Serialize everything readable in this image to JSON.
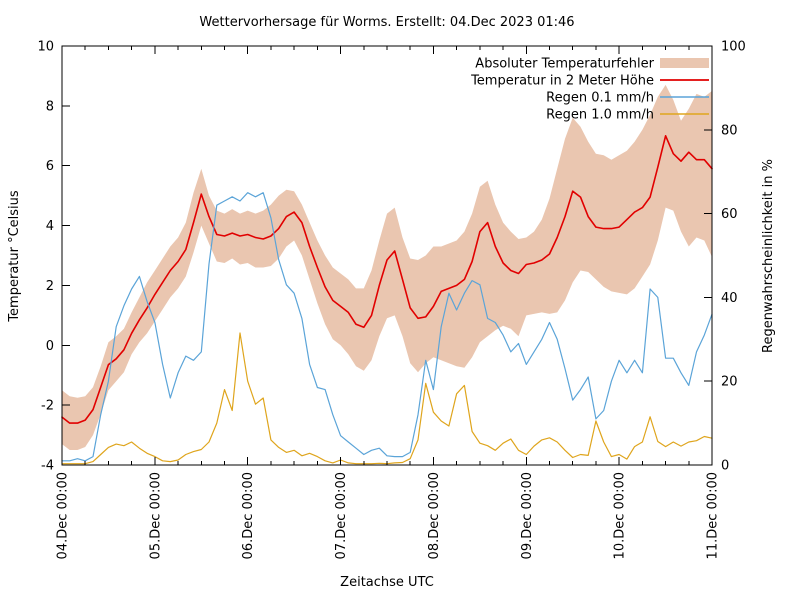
{
  "title": "Wettervorhersage für Worms. Erstellt: 04.Dec 2023 01:46",
  "chart_data": {
    "type": "line",
    "title": "Wettervorhersage für Worms. Erstellt: 04.Dec 2023 01:46",
    "background_color": "#ffffff",
    "grid": false,
    "legend_position": "top-right-inside",
    "x_axis": {
      "label": "Zeitachse UTC",
      "tick_labels": [
        "04.Dec 00:00",
        "05.Dec 00:00",
        "06.Dec 00:00",
        "07.Dec 00:00",
        "08.Dec 00:00",
        "09.Dec 00:00",
        "10.Dec 00:00",
        "11.Dec 00:00"
      ],
      "minor_ticks_per_day": 4,
      "hours_step": 2,
      "hours_total": 168
    },
    "left_axis": {
      "label": "Temperatur °Celsius",
      "min": -4,
      "max": 10,
      "ticks": [
        -4,
        -2,
        0,
        2,
        4,
        6,
        8,
        10
      ]
    },
    "right_axis": {
      "label": "Regenwahrscheinlichkeit in %",
      "min": 0,
      "max": 100,
      "ticks": [
        0,
        20,
        40,
        60,
        80,
        100
      ]
    },
    "series": [
      {
        "name": "Absoluter Temperaturfehler",
        "type": "band",
        "axis": "left",
        "color": "#eac6b0",
        "upper": [
          -1.5,
          -1.7,
          -1.75,
          -1.7,
          -1.4,
          -0.7,
          0.1,
          0.3,
          0.55,
          1.1,
          1.6,
          2.1,
          2.5,
          2.9,
          3.3,
          3.6,
          4.1,
          5.1,
          5.9,
          5.0,
          4.5,
          4.4,
          4.55,
          4.4,
          4.5,
          4.4,
          4.5,
          4.7,
          5.0,
          5.2,
          5.15,
          4.7,
          4.1,
          3.5,
          3.0,
          2.6,
          2.4,
          2.2,
          1.9,
          1.9,
          2.5,
          3.5,
          4.4,
          4.6,
          3.6,
          2.9,
          2.85,
          3.0,
          3.3,
          3.3,
          3.4,
          3.5,
          3.8,
          4.4,
          5.3,
          5.5,
          4.7,
          4.1,
          3.8,
          3.55,
          3.6,
          3.8,
          4.2,
          4.9,
          5.9,
          6.9,
          7.6,
          7.3,
          6.8,
          6.4,
          6.35,
          6.2,
          6.35,
          6.5,
          6.8,
          7.2,
          7.7,
          8.3,
          8.7,
          8.2,
          7.5,
          7.9,
          8.4,
          8.3,
          8.5
        ],
        "lower": [
          -3.3,
          -3.5,
          -3.5,
          -3.4,
          -3.0,
          -2.3,
          -1.5,
          -1.2,
          -0.9,
          -0.3,
          0.1,
          0.4,
          0.8,
          1.2,
          1.6,
          1.9,
          2.3,
          3.1,
          4.0,
          3.4,
          2.8,
          2.75,
          2.9,
          2.7,
          2.75,
          2.6,
          2.6,
          2.65,
          2.9,
          3.3,
          3.5,
          3.0,
          2.2,
          1.4,
          0.7,
          0.2,
          0.0,
          -0.3,
          -0.7,
          -0.85,
          -0.5,
          0.3,
          0.9,
          1.0,
          0.3,
          -0.6,
          -0.9,
          -0.6,
          -0.4,
          -0.5,
          -0.6,
          -0.7,
          -0.75,
          -0.4,
          0.1,
          0.3,
          0.5,
          0.65,
          0.55,
          0.3,
          1.0,
          1.05,
          1.1,
          1.05,
          1.1,
          1.5,
          2.1,
          2.5,
          2.45,
          2.2,
          1.95,
          1.8,
          1.75,
          1.7,
          1.9,
          2.3,
          2.7,
          3.5,
          4.6,
          4.5,
          3.8,
          3.3,
          3.6,
          3.5,
          2.95
        ]
      },
      {
        "name": "Temperatur in 2 Meter Höhe",
        "type": "line",
        "axis": "left",
        "color": "#e10000",
        "width": 1.6,
        "values": [
          -2.4,
          -2.6,
          -2.6,
          -2.5,
          -2.15,
          -1.4,
          -0.65,
          -0.45,
          -0.15,
          0.4,
          0.85,
          1.25,
          1.7,
          2.1,
          2.5,
          2.8,
          3.2,
          4.1,
          5.05,
          4.3,
          3.7,
          3.65,
          3.75,
          3.65,
          3.7,
          3.6,
          3.55,
          3.65,
          3.9,
          4.3,
          4.45,
          4.1,
          3.3,
          2.6,
          1.95,
          1.5,
          1.3,
          1.1,
          0.7,
          0.6,
          1.0,
          2.0,
          2.85,
          3.15,
          2.2,
          1.25,
          0.9,
          0.95,
          1.3,
          1.8,
          1.9,
          2.0,
          2.2,
          2.8,
          3.8,
          4.1,
          3.3,
          2.75,
          2.5,
          2.4,
          2.7,
          2.75,
          2.85,
          3.05,
          3.6,
          4.3,
          5.15,
          4.95,
          4.3,
          3.95,
          3.9,
          3.9,
          3.95,
          4.2,
          4.45,
          4.6,
          4.95,
          5.95,
          7.0,
          6.4,
          6.15,
          6.45,
          6.2,
          6.2,
          5.9
        ]
      },
      {
        "name": "Regen 0.1 mm/h",
        "type": "line",
        "axis": "right",
        "color": "#5ba4d8",
        "width": 1.2,
        "values": [
          1,
          1,
          1.5,
          1,
          2,
          12,
          20,
          33,
          38,
          42,
          45,
          39,
          34,
          24,
          16,
          22,
          26,
          25,
          27,
          48,
          62,
          63,
          64,
          63,
          65,
          64,
          65,
          59,
          49,
          43,
          41,
          35,
          24,
          18.5,
          18,
          12,
          7,
          5.5,
          4,
          2.5,
          3.5,
          4,
          2.2,
          2,
          2,
          3,
          12,
          25,
          18,
          33,
          41,
          37,
          41,
          44,
          43,
          35,
          34,
          31,
          27,
          29,
          24,
          27,
          30,
          34,
          30,
          23,
          15.5,
          18,
          21,
          11,
          13,
          20,
          25,
          22,
          25,
          22,
          42,
          40,
          25.5,
          25.5,
          22,
          19,
          27,
          31,
          36
        ]
      },
      {
        "name": "Regen 1.0 mm/h",
        "type": "line",
        "axis": "right",
        "color": "#dfa51d",
        "width": 1.2,
        "values": [
          0.3,
          0.3,
          0.3,
          0.3,
          0.8,
          2.5,
          4.2,
          5.0,
          4.6,
          5.5,
          4.0,
          2.8,
          2.0,
          1.0,
          0.8,
          1.2,
          2.5,
          3.2,
          3.7,
          5.5,
          10,
          18,
          13,
          31.5,
          20,
          14.5,
          16,
          6,
          4.2,
          3,
          3.5,
          2.2,
          2.8,
          2,
          1,
          0.5,
          1.2,
          0.5,
          0.3,
          0.3,
          0.3,
          0.4,
          0.3,
          0.5,
          0.6,
          1.5,
          6,
          19.5,
          12.6,
          10.5,
          9.3,
          17,
          19,
          8,
          5.2,
          4.6,
          3.5,
          5.2,
          6.2,
          3.5,
          2.5,
          4.5,
          6,
          6.5,
          5.5,
          3.5,
          1.8,
          2.5,
          2.3,
          10.5,
          5.5,
          2,
          2.5,
          1.4,
          4.4,
          5.5,
          11.5,
          5.6,
          4.4,
          5.5,
          4.5,
          5.5,
          5.8,
          6.8,
          6.4
        ]
      }
    ]
  }
}
